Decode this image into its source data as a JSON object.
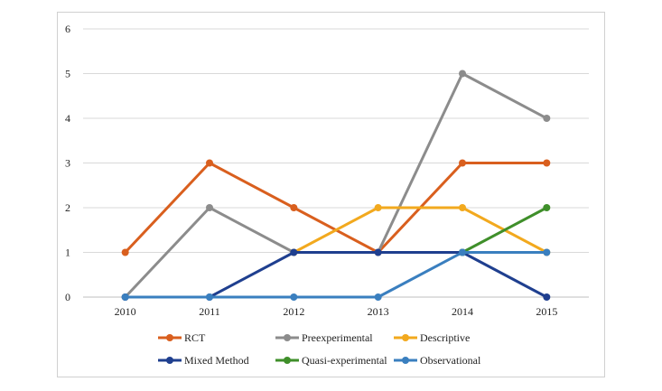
{
  "chart_data": {
    "type": "line",
    "title": "",
    "xlabel": "",
    "ylabel": "",
    "categories": [
      "2010",
      "2011",
      "2012",
      "2013",
      "2014",
      "2015"
    ],
    "ylim": [
      0,
      6
    ],
    "yticks": [
      "0",
      "1",
      "2",
      "3",
      "4",
      "5",
      "6"
    ],
    "grid": true,
    "legend_position": "bottom",
    "series": [
      {
        "name": "RCT",
        "color": "#d95f1e",
        "values": [
          1,
          3,
          2,
          1,
          3,
          3
        ]
      },
      {
        "name": "Preexperimental",
        "color": "#8c8c8c",
        "values": [
          0,
          2,
          1,
          1,
          5,
          4
        ]
      },
      {
        "name": "Descriptive",
        "color": "#f2a91e",
        "values": [
          null,
          null,
          1,
          2,
          2,
          1
        ]
      },
      {
        "name": "Mixed Method",
        "color": "#1f3f8f",
        "values": [
          0,
          0,
          1,
          1,
          1,
          0
        ]
      },
      {
        "name": "Quasi-experimental",
        "color": "#3f8f2a",
        "values": [
          null,
          null,
          null,
          null,
          1,
          2
        ]
      },
      {
        "name": "Observational",
        "color": "#3a7fbf",
        "values": [
          0,
          0,
          0,
          0,
          1,
          1
        ]
      }
    ]
  }
}
